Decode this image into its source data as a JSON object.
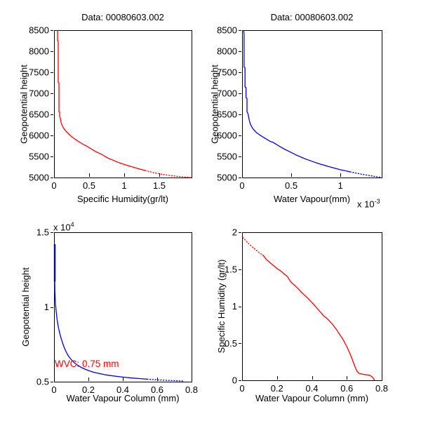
{
  "figure": {
    "background": "#ffffff",
    "axis_color": "#000000",
    "red": "#ff0000",
    "blue": "#0000dd"
  },
  "chart_data": [
    {
      "type": "line",
      "title": "Data: 00080603.002",
      "xlabel": "Specific Humidity(gr/lt)",
      "ylabel": "Geopotential height",
      "xlim": [
        0,
        1.96
      ],
      "ylim": [
        5000,
        8500
      ],
      "grid": false,
      "legend": null,
      "xticks": {
        "values": [
          0,
          0.5,
          1,
          1.5
        ],
        "labels": [
          "0",
          "0.5",
          "1",
          "1.5"
        ]
      },
      "yticks": {
        "values": [
          5000,
          5500,
          6000,
          6500,
          7000,
          7500,
          8000,
          8500
        ],
        "labels": [
          "5000",
          "5500",
          "6000",
          "6500",
          "7000",
          "7500",
          "8000",
          "8500"
        ]
      },
      "series": [
        {
          "name": "specific-humidity-profile",
          "color": "#ff0000",
          "dotted_x_ranges": [
            [
              1.28,
              2.0
            ]
          ],
          "points": [
            [
              0.05,
              8500
            ],
            [
              0.05,
              8250
            ],
            [
              0.06,
              8240
            ],
            [
              0.06,
              7260
            ],
            [
              0.07,
              7250
            ],
            [
              0.07,
              6560
            ],
            [
              0.08,
              6550
            ],
            [
              0.08,
              6460
            ],
            [
              0.09,
              6400
            ],
            [
              0.1,
              6310
            ],
            [
              0.11,
              6260
            ],
            [
              0.13,
              6190
            ],
            [
              0.15,
              6140
            ],
            [
              0.17,
              6100
            ],
            [
              0.2,
              6050
            ],
            [
              0.23,
              6000
            ],
            [
              0.26,
              5960
            ],
            [
              0.3,
              5910
            ],
            [
              0.34,
              5865
            ],
            [
              0.38,
              5825
            ],
            [
              0.42,
              5785
            ],
            [
              0.46,
              5750
            ],
            [
              0.5,
              5710
            ],
            [
              0.55,
              5660
            ],
            [
              0.6,
              5610
            ],
            [
              0.64,
              5580
            ],
            [
              0.68,
              5550
            ],
            [
              0.72,
              5510
            ],
            [
              0.76,
              5470
            ],
            [
              0.8,
              5440
            ],
            [
              0.85,
              5405
            ],
            [
              0.9,
              5370
            ],
            [
              0.95,
              5340
            ],
            [
              1.0,
              5310
            ],
            [
              1.05,
              5285
            ],
            [
              1.1,
              5260
            ],
            [
              1.15,
              5235
            ],
            [
              1.2,
              5210
            ],
            [
              1.25,
              5190
            ],
            [
              1.3,
              5165
            ],
            [
              1.35,
              5145
            ],
            [
              1.4,
              5125
            ],
            [
              1.45,
              5105
            ],
            [
              1.5,
              5090
            ],
            [
              1.55,
              5075
            ],
            [
              1.6,
              5060
            ],
            [
              1.65,
              5050
            ],
            [
              1.7,
              5040
            ],
            [
              1.75,
              5028
            ],
            [
              1.8,
              5020
            ],
            [
              1.85,
              5012
            ],
            [
              1.9,
              5006
            ],
            [
              1.95,
              5000
            ]
          ]
        }
      ]
    },
    {
      "type": "line",
      "title": "Data: 00080603.002",
      "xlabel": "Water Vapour(mm)",
      "ylabel": "Geopotential height",
      "x_exponent": {
        "base": "x 10",
        "sup": "-3"
      },
      "xlim": [
        0,
        1.42
      ],
      "ylim": [
        5000,
        8500
      ],
      "grid": false,
      "legend": null,
      "xticks": {
        "values": [
          0,
          0.5,
          1
        ],
        "labels": [
          "0",
          "0.5",
          "1"
        ]
      },
      "yticks": {
        "values": [
          5000,
          5500,
          6000,
          6500,
          7000,
          7500,
          8000,
          8500
        ],
        "labels": [
          "5000",
          "5500",
          "6000",
          "6500",
          "7000",
          "7500",
          "8000",
          "8500"
        ]
      },
      "series": [
        {
          "name": "water-vapour-profile",
          "color": "#0000dd",
          "dotted_x_ranges": [
            [
              1.12,
              1.5
            ]
          ],
          "points": [
            [
              0.015,
              8500
            ],
            [
              0.02,
              8420
            ],
            [
              0.02,
              7620
            ],
            [
              0.03,
              7610
            ],
            [
              0.03,
              7150
            ],
            [
              0.04,
              7140
            ],
            [
              0.04,
              6900
            ],
            [
              0.05,
              6880
            ],
            [
              0.05,
              6560
            ],
            [
              0.06,
              6520
            ],
            [
              0.07,
              6400
            ],
            [
              0.08,
              6300
            ],
            [
              0.09,
              6240
            ],
            [
              0.11,
              6160
            ],
            [
              0.13,
              6110
            ],
            [
              0.15,
              6060
            ],
            [
              0.18,
              6010
            ],
            [
              0.21,
              5965
            ],
            [
              0.24,
              5925
            ],
            [
              0.27,
              5880
            ],
            [
              0.29,
              5855
            ],
            [
              0.31,
              5840
            ],
            [
              0.34,
              5800
            ],
            [
              0.37,
              5755
            ],
            [
              0.4,
              5715
            ],
            [
              0.43,
              5675
            ],
            [
              0.46,
              5640
            ],
            [
              0.49,
              5605
            ],
            [
              0.52,
              5570
            ],
            [
              0.55,
              5535
            ],
            [
              0.58,
              5505
            ],
            [
              0.61,
              5475
            ],
            [
              0.64,
              5445
            ],
            [
              0.67,
              5420
            ],
            [
              0.7,
              5395
            ],
            [
              0.73,
              5370
            ],
            [
              0.76,
              5345
            ],
            [
              0.8,
              5315
            ],
            [
              0.84,
              5290
            ],
            [
              0.88,
              5260
            ],
            [
              0.92,
              5235
            ],
            [
              0.96,
              5210
            ],
            [
              1.0,
              5185
            ],
            [
              1.05,
              5160
            ],
            [
              1.1,
              5135
            ],
            [
              1.15,
              5110
            ],
            [
              1.2,
              5085
            ],
            [
              1.25,
              5065
            ],
            [
              1.3,
              5045
            ],
            [
              1.35,
              5025
            ],
            [
              1.4,
              5008
            ],
            [
              1.42,
              5000
            ]
          ]
        }
      ]
    },
    {
      "type": "line",
      "title": null,
      "xlabel": "Water Vapour Column (mm)",
      "ylabel": "Geopotential height",
      "y_exponent": {
        "base": "x 10",
        "sup": "4"
      },
      "xlim": [
        0,
        0.8
      ],
      "ylim": [
        0.5,
        1.5
      ],
      "grid": false,
      "legend": null,
      "xticks": {
        "values": [
          0,
          0.2,
          0.4,
          0.6,
          0.8
        ],
        "labels": [
          "0",
          "0.2",
          "0.4",
          "0.6",
          "0.8"
        ]
      },
      "yticks": {
        "values": [
          0.5,
          1,
          1.5
        ],
        "labels": [
          "0.5",
          "1",
          "1.5"
        ]
      },
      "series": [
        {
          "name": "water-vapour-column-profile",
          "color": "#0000dd",
          "dotted_x_ranges": [
            [
              0.52,
              0.8
            ]
          ],
          "thick_lead_points": 2,
          "points": [
            [
              0.004,
              1.42
            ],
            [
              0.004,
              1.17
            ],
            [
              0.005,
              1.1
            ],
            [
              0.006,
              1.07
            ],
            [
              0.007,
              1.045
            ],
            [
              0.008,
              1.02
            ],
            [
              0.01,
              1.0
            ],
            [
              0.012,
              0.975
            ],
            [
              0.015,
              0.945
            ],
            [
              0.018,
              0.915
            ],
            [
              0.022,
              0.885
            ],
            [
              0.027,
              0.855
            ],
            [
              0.033,
              0.825
            ],
            [
              0.04,
              0.795
            ],
            [
              0.048,
              0.765
            ],
            [
              0.057,
              0.735
            ],
            [
              0.067,
              0.708
            ],
            [
              0.078,
              0.683
            ],
            [
              0.09,
              0.662
            ],
            [
              0.104,
              0.643
            ],
            [
              0.12,
              0.625
            ],
            [
              0.138,
              0.61
            ],
            [
              0.158,
              0.596
            ],
            [
              0.18,
              0.584
            ],
            [
              0.205,
              0.573
            ],
            [
              0.232,
              0.563
            ],
            [
              0.262,
              0.555
            ],
            [
              0.295,
              0.547
            ],
            [
              0.33,
              0.541
            ],
            [
              0.368,
              0.535
            ],
            [
              0.408,
              0.53
            ],
            [
              0.45,
              0.525
            ],
            [
              0.495,
              0.521
            ],
            [
              0.542,
              0.517
            ],
            [
              0.59,
              0.513
            ],
            [
              0.64,
              0.51
            ],
            [
              0.695,
              0.507
            ],
            [
              0.75,
              0.504
            ]
          ]
        }
      ],
      "annotations": [
        {
          "text": "WVC: 0.75 mm",
          "x": 0.004,
          "y": 0.598,
          "color": "#ff0000"
        }
      ]
    },
    {
      "type": "line",
      "title": null,
      "xlabel": "Water Vapour Column (mm)",
      "ylabel": "Specific Humidity (gr/lt)",
      "xlim": [
        0,
        0.8
      ],
      "ylim": [
        0,
        2
      ],
      "grid": false,
      "legend": null,
      "xticks": {
        "values": [
          0,
          0.2,
          0.4,
          0.6,
          0.8
        ],
        "labels": [
          "0",
          "0.2",
          "0.4",
          "0.6",
          "0.8"
        ]
      },
      "yticks": {
        "values": [
          0,
          0.5,
          1,
          1.5,
          2
        ],
        "labels": [
          "0",
          "0.5",
          "1",
          "1.5",
          "2"
        ]
      },
      "series": [
        {
          "name": "specific-humidity-vs-wvc",
          "color": "#ff0000",
          "dotted_x_ranges": [
            [
              0,
              0.125
            ]
          ],
          "points": [
            [
              0.005,
              1.93
            ],
            [
              0.02,
              1.89
            ],
            [
              0.04,
              1.84
            ],
            [
              0.06,
              1.8
            ],
            [
              0.08,
              1.76
            ],
            [
              0.1,
              1.72
            ],
            [
              0.12,
              1.69
            ],
            [
              0.14,
              1.63
            ],
            [
              0.16,
              1.59
            ],
            [
              0.18,
              1.55
            ],
            [
              0.2,
              1.51
            ],
            [
              0.22,
              1.48
            ],
            [
              0.24,
              1.44
            ],
            [
              0.26,
              1.4
            ],
            [
              0.275,
              1.345
            ],
            [
              0.285,
              1.315
            ],
            [
              0.3,
              1.285
            ],
            [
              0.32,
              1.24
            ],
            [
              0.34,
              1.19
            ],
            [
              0.36,
              1.145
            ],
            [
              0.38,
              1.1
            ],
            [
              0.4,
              1.05
            ],
            [
              0.42,
              1.0
            ],
            [
              0.44,
              0.945
            ],
            [
              0.455,
              0.905
            ],
            [
              0.465,
              0.875
            ],
            [
              0.475,
              0.855
            ],
            [
              0.485,
              0.84
            ],
            [
              0.495,
              0.815
            ],
            [
              0.505,
              0.79
            ],
            [
              0.515,
              0.765
            ],
            [
              0.53,
              0.72
            ],
            [
              0.545,
              0.67
            ],
            [
              0.56,
              0.615
            ],
            [
              0.575,
              0.565
            ],
            [
              0.59,
              0.5
            ],
            [
              0.6,
              0.455
            ],
            [
              0.61,
              0.405
            ],
            [
              0.62,
              0.35
            ],
            [
              0.63,
              0.29
            ],
            [
              0.64,
              0.225
            ],
            [
              0.65,
              0.165
            ],
            [
              0.66,
              0.115
            ],
            [
              0.67,
              0.095
            ],
            [
              0.685,
              0.085
            ],
            [
              0.7,
              0.078
            ],
            [
              0.715,
              0.075
            ],
            [
              0.73,
              0.068
            ],
            [
              0.74,
              0.055
            ],
            [
              0.75,
              0.035
            ],
            [
              0.755,
              0.015
            ],
            [
              0.758,
              0.0
            ]
          ]
        }
      ]
    }
  ]
}
